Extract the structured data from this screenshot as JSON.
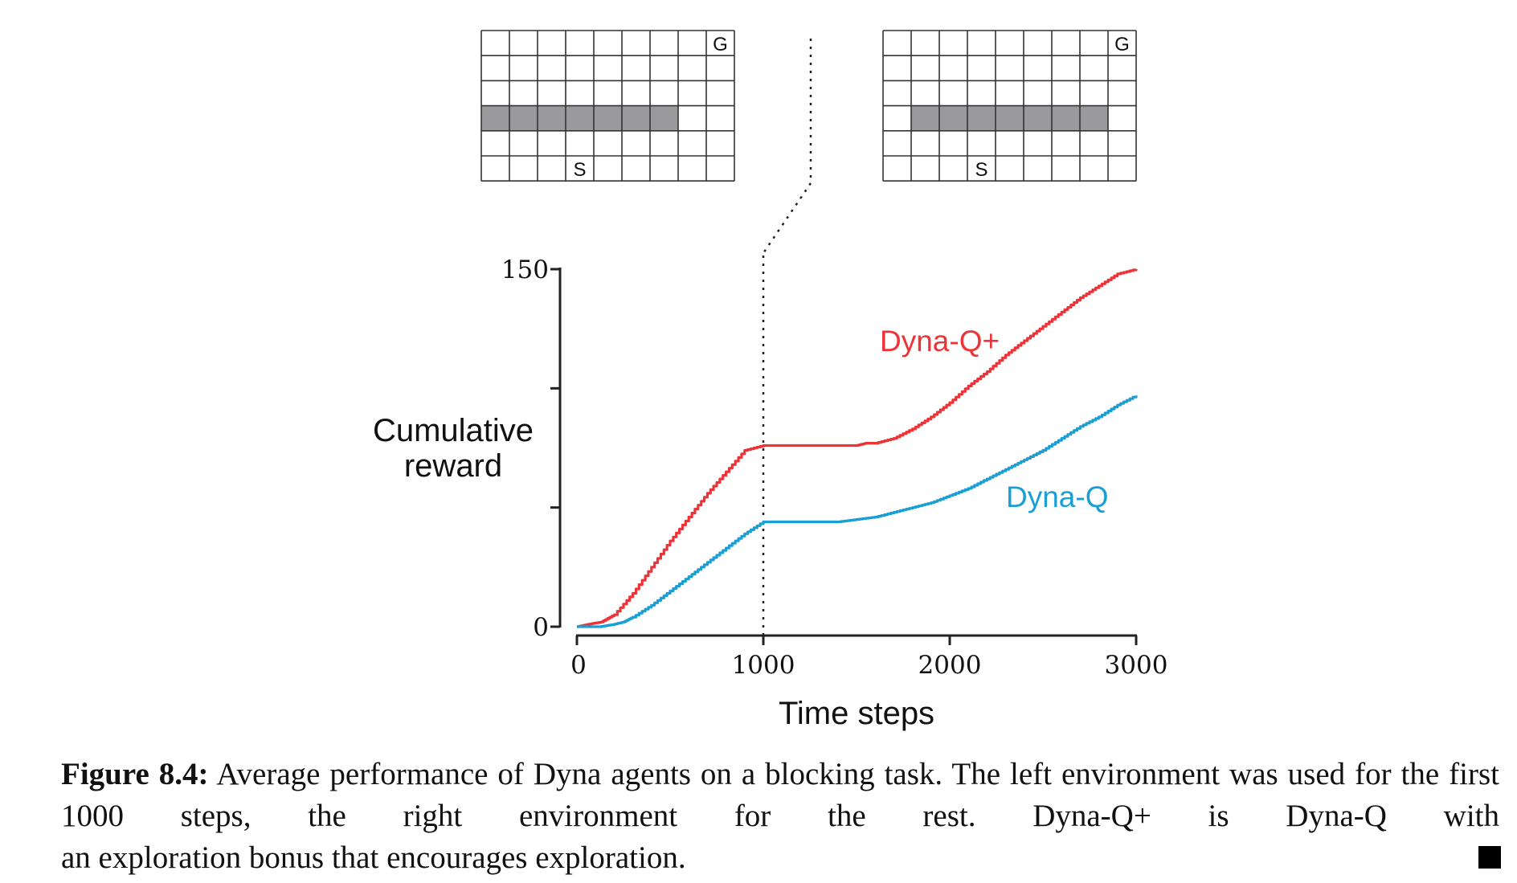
{
  "chart_data": {
    "type": "line",
    "title": "",
    "xlabel": "Time steps",
    "ylabel_lines": [
      "Cumulative",
      "reward"
    ],
    "xlim": [
      0,
      3000
    ],
    "ylim": [
      0,
      150
    ],
    "x_ticks": [
      0,
      1000,
      2000,
      3000
    ],
    "x_tick_labels": [
      "0",
      "1000",
      "2000",
      "3000"
    ],
    "y_ticks": [
      0,
      50,
      100,
      150
    ],
    "y_tick_labels": [
      "0",
      "",
      "",
      "150"
    ],
    "env_change_step": 1000,
    "series": [
      {
        "name": "Dyna-Q+",
        "color": "#ee3338",
        "x": [
          0,
          60,
          130,
          200,
          300,
          400,
          500,
          600,
          700,
          800,
          900,
          1000,
          1100,
          1200,
          1300,
          1400,
          1500,
          1550,
          1600,
          1700,
          1800,
          1900,
          2000,
          2100,
          2200,
          2300,
          2400,
          2500,
          2600,
          2700,
          2800,
          2900,
          3000
        ],
        "values": [
          0,
          1,
          2,
          5,
          14,
          25,
          36,
          46,
          56,
          65,
          74,
          76,
          76,
          76,
          76,
          76,
          76,
          77,
          77,
          79,
          83,
          88,
          94,
          101,
          107,
          114,
          120,
          126,
          132,
          138,
          143,
          148,
          150
        ]
      },
      {
        "name": "Dyna-Q",
        "color": "#1a9fd4",
        "x": [
          0,
          120,
          200,
          250,
          300,
          400,
          500,
          600,
          700,
          800,
          900,
          1000,
          1100,
          1200,
          1300,
          1400,
          1500,
          1600,
          1700,
          1800,
          1900,
          2000,
          2100,
          2200,
          2300,
          2400,
          2500,
          2600,
          2700,
          2800,
          2900,
          3000
        ],
        "values": [
          0,
          0,
          1,
          2,
          4,
          9,
          15,
          21,
          27,
          33,
          39,
          44,
          44,
          44,
          44,
          44,
          45,
          46,
          48,
          50,
          52,
          55,
          58,
          62,
          66,
          70,
          74,
          79,
          84,
          88,
          93,
          97
        ]
      }
    ],
    "annotations": [
      {
        "text": "Dyna-Q+",
        "series": "Dyna-Q+"
      },
      {
        "text": "Dyna-Q",
        "series": "Dyna-Q"
      }
    ],
    "dotted_line": "vertical at 1000 steps, connecting to gap between environment grids"
  },
  "gridworlds": {
    "left": {
      "cols": 9,
      "rows": 6,
      "goal_label": "G",
      "start_label": "S",
      "goal_cell": [
        8,
        0
      ],
      "start_cell": [
        3,
        5
      ],
      "wall_row": 3,
      "wall_cols": [
        0,
        7
      ]
    },
    "right": {
      "cols": 9,
      "rows": 6,
      "goal_label": "G",
      "start_label": "S",
      "goal_cell": [
        8,
        0
      ],
      "start_cell": [
        3,
        5
      ],
      "wall_row": 3,
      "wall_cols": [
        1,
        8
      ]
    }
  },
  "caption": {
    "label": "Figure 8.4:",
    "line1": "Average performance of Dyna agents on a blocking task. The left environment",
    "line2": "was used for the first 1000 steps, the right environment for the rest. Dyna-Q+ is Dyna-Q with",
    "line3": "an exploration bonus that encourages exploration."
  }
}
